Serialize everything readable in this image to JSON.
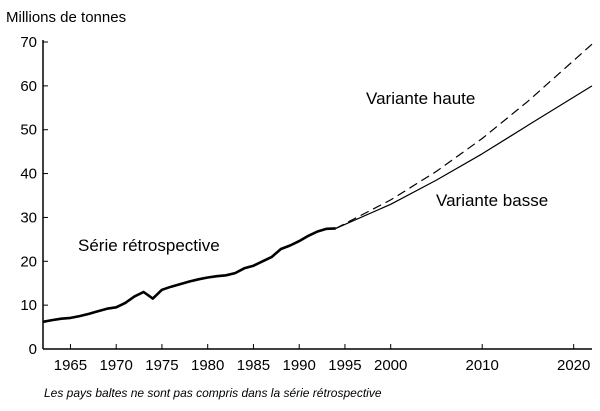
{
  "chart_data": {
    "type": "line",
    "title": "",
    "ylabel": "Millions de tonnes",
    "xlabel": "",
    "ylim": [
      0,
      70
    ],
    "xlim": [
      1962,
      2022
    ],
    "grid": false,
    "y_ticks": [
      "0",
      "10",
      "20",
      "30",
      "40",
      "50",
      "60",
      "70"
    ],
    "x_ticks": [
      "1965",
      "1970",
      "1975",
      "1980",
      "1985",
      "1990",
      "1995",
      "2000",
      "2010",
      "2020"
    ],
    "x_tick_values": [
      1965,
      1970,
      1975,
      1980,
      1985,
      1990,
      1995,
      2000,
      2010,
      2020
    ],
    "series": [
      {
        "name": "Série rétrospective",
        "style": "solid-bold",
        "x": [
          1962,
          1963,
          1964,
          1965,
          1966,
          1967,
          1968,
          1969,
          1970,
          1971,
          1972,
          1973,
          1974,
          1975,
          1976,
          1977,
          1978,
          1979,
          1980,
          1981,
          1982,
          1983,
          1984,
          1985,
          1986,
          1987,
          1988,
          1989,
          1990,
          1991,
          1992,
          1993,
          1994
        ],
        "values": [
          6.2,
          6.6,
          6.9,
          7.1,
          7.5,
          8.0,
          8.6,
          9.2,
          9.5,
          10.5,
          12.0,
          13.0,
          11.5,
          13.5,
          14.2,
          14.8,
          15.4,
          15.9,
          16.3,
          16.6,
          16.8,
          17.3,
          18.4,
          19.0,
          20.0,
          21.0,
          22.8,
          23.6,
          24.6,
          25.8,
          26.8,
          27.4,
          27.5
        ]
      },
      {
        "name": "Variante haute",
        "style": "dashed",
        "x": [
          1994,
          2000,
          2005,
          2010,
          2015,
          2022
        ],
        "values": [
          27.5,
          34,
          40.5,
          48,
          56.5,
          69.5
        ]
      },
      {
        "name": "Variante basse",
        "style": "solid",
        "x": [
          1994,
          2000,
          2005,
          2010,
          2015,
          2022
        ],
        "values": [
          27.5,
          33,
          38.5,
          44.5,
          51,
          60
        ]
      }
    ],
    "annotations": [
      {
        "text": "Variante haute",
        "series": "Variante haute"
      },
      {
        "text": "Variante basse",
        "series": "Variante basse"
      },
      {
        "text": "Série rétrospective",
        "series": "Série rétrospective"
      }
    ],
    "note": "Les pays baltes ne sont pas compris dans la série rétrospective"
  }
}
